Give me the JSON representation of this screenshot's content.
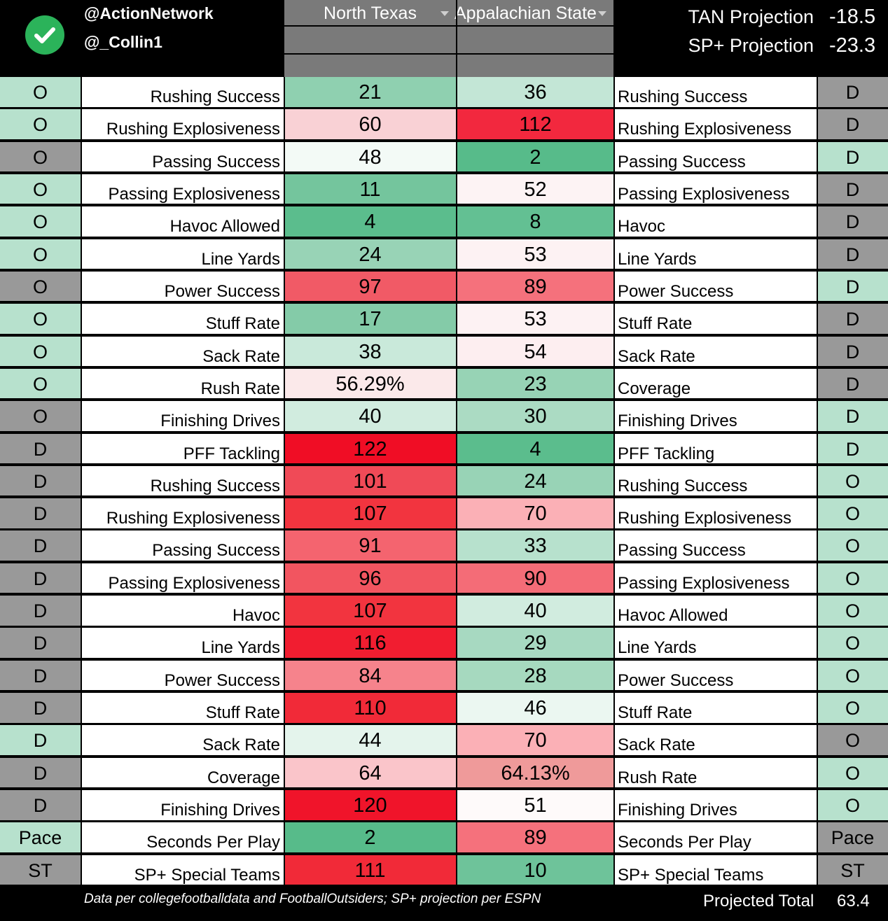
{
  "header": {
    "handle1": "@ActionNetwork",
    "handle2": "@_Collin1",
    "team_left": "North Texas",
    "team_right": "Appalachian State",
    "proj1_label": "TAN Projection",
    "proj1_value": "-18.5",
    "proj2_label": "SP+ Projection",
    "proj2_value": "-23.3"
  },
  "colors": {
    "green_strong": "#57bb8a",
    "red_strong": "#e8002c",
    "unit_green": "#b7e1cd",
    "unit_gray": "#999999"
  },
  "rows": [
    {
      "ul": "O",
      "ulc": "g",
      "ll": "Rushing Success",
      "vl": "21",
      "cl": "#8fd0b0",
      "vr": "36",
      "cr": "#c3e6d6",
      "lr": "Rushing Success",
      "ur": "D",
      "urc": "x"
    },
    {
      "ul": "O",
      "ulc": "g",
      "ll": "Rushing Explosiveness",
      "vl": "60",
      "cl": "#f9d1d5",
      "vr": "112",
      "cr": "#f2283e",
      "lr": "Rushing Explosiveness",
      "ur": "D",
      "urc": "x"
    },
    {
      "ul": "O",
      "ulc": "x",
      "ll": "Passing Success",
      "vl": "48",
      "cl": "#f3faf6",
      "vr": "2",
      "cr": "#57bb8a",
      "lr": "Passing Success",
      "ur": "D",
      "urc": "g"
    },
    {
      "ul": "O",
      "ulc": "g",
      "ll": "Passing Explosiveness",
      "vl": "11",
      "cl": "#74c59d",
      "vr": "52",
      "cr": "#fdf3f4",
      "lr": "Passing Explosiveness",
      "ur": "D",
      "urc": "x"
    },
    {
      "ul": "O",
      "ulc": "g",
      "ll": "Havoc Allowed",
      "vl": "4",
      "cl": "#5bbd8d",
      "vr": "8",
      "cr": "#63c093",
      "lr": "Havoc",
      "ur": "D",
      "urc": "x"
    },
    {
      "ul": "O",
      "ulc": "g",
      "ll": "Line Yards",
      "vl": "24",
      "cl": "#98d3b6",
      "vr": "53",
      "cr": "#fdf2f3",
      "lr": "Line Yards",
      "ur": "D",
      "urc": "x"
    },
    {
      "ul": "O",
      "ulc": "x",
      "ll": "Power Success",
      "vl": "97",
      "cl": "#f15a66",
      "vr": "89",
      "cr": "#f5717c",
      "lr": "Power Success",
      "ur": "D",
      "urc": "g"
    },
    {
      "ul": "O",
      "ulc": "g",
      "ll": "Stuff Rate",
      "vl": "17",
      "cl": "#84cba8",
      "vr": "53",
      "cr": "#fdf2f3",
      "lr": "Stuff Rate",
      "ur": "D",
      "urc": "x"
    },
    {
      "ul": "O",
      "ulc": "g",
      "ll": "Sack Rate",
      "vl": "38",
      "cl": "#c9e9da",
      "vr": "54",
      "cr": "#fdeef0",
      "lr": "Sack Rate",
      "ur": "D",
      "urc": "x"
    },
    {
      "ul": "O",
      "ulc": "g",
      "ll": "Rush Rate",
      "vl": "56.29%",
      "cl": "#fbe9ea",
      "vr": "23",
      "cr": "#97d3b5",
      "lr": "Coverage",
      "ur": "D",
      "urc": "x"
    },
    {
      "ul": "O",
      "ulc": "x",
      "ll": "Finishing Drives",
      "vl": "40",
      "cl": "#d1ecdf",
      "vr": "30",
      "cr": "#abdbc3",
      "lr": "Finishing Drives",
      "ur": "D",
      "urc": "g"
    },
    {
      "ul": "D",
      "ulc": "x",
      "ll": "PFF Tackling",
      "vl": "122",
      "cl": "#f00d25",
      "vr": "4",
      "cr": "#5bbd8d",
      "lr": "PFF Tackling",
      "ur": "D",
      "urc": "g"
    },
    {
      "ul": "D",
      "ulc": "x",
      "ll": "Rushing Success",
      "vl": "101",
      "cl": "#f04a57",
      "vr": "24",
      "cr": "#98d3b6",
      "lr": "Rushing Success",
      "ur": "O",
      "urc": "g"
    },
    {
      "ul": "D",
      "ulc": "x",
      "ll": "Rushing Explosiveness",
      "vl": "107",
      "cl": "#f2343f",
      "vr": "70",
      "cr": "#fbb0b6",
      "lr": "Rushing Explosiveness",
      "ur": "O",
      "urc": "g"
    },
    {
      "ul": "D",
      "ulc": "x",
      "ll": "Passing Success",
      "vl": "91",
      "cl": "#f4646f",
      "vr": "33",
      "cr": "#b7e1cd",
      "lr": "Passing Success",
      "ur": "O",
      "urc": "g"
    },
    {
      "ul": "D",
      "ulc": "x",
      "ll": "Passing Explosiveness",
      "vl": "96",
      "cl": "#f25560",
      "vr": "90",
      "cr": "#f46c77",
      "lr": "Passing Explosiveness",
      "ur": "O",
      "urc": "g"
    },
    {
      "ul": "D",
      "ulc": "x",
      "ll": "Havoc",
      "vl": "107",
      "cl": "#f2343f",
      "vr": "40",
      "cr": "#d1ecdf",
      "lr": "Havoc Allowed",
      "ur": "O",
      "urc": "g"
    },
    {
      "ul": "D",
      "ulc": "x",
      "ll": "Line Yards",
      "vl": "116",
      "cl": "#f11d30",
      "vr": "29",
      "cr": "#a7d9c1",
      "lr": "Line Yards",
      "ur": "O",
      "urc": "g"
    },
    {
      "ul": "D",
      "ulc": "x",
      "ll": "Power Success",
      "vl": "84",
      "cl": "#f6838c",
      "vr": "28",
      "cr": "#a6d9bf",
      "lr": "Power Success",
      "ur": "O",
      "urc": "g"
    },
    {
      "ul": "D",
      "ulc": "x",
      "ll": "Stuff Rate",
      "vl": "110",
      "cl": "#f12a38",
      "vr": "46",
      "cr": "#ebf7f1",
      "lr": "Stuff Rate",
      "ur": "O",
      "urc": "g"
    },
    {
      "ul": "D",
      "ulc": "g",
      "ll": "Sack Rate",
      "vl": "44",
      "cl": "#e4f4ec",
      "vr": "70",
      "cr": "#fbb0b6",
      "lr": "Sack Rate",
      "ur": "O",
      "urc": "x"
    },
    {
      "ul": "D",
      "ulc": "x",
      "ll": "Coverage",
      "vl": "64",
      "cl": "#fac5ca",
      "vr": "64.13%",
      "cr": "#ef9a9a",
      "lr": "Rush Rate",
      "ur": "O",
      "urc": "g"
    },
    {
      "ul": "D",
      "ulc": "x",
      "ll": "Finishing Drives",
      "vl": "120",
      "cl": "#f0142a",
      "vr": "51",
      "cr": "#fefafa",
      "lr": "Finishing Drives",
      "ur": "O",
      "urc": "g"
    },
    {
      "ul": "Pace",
      "ulc": "g",
      "ll": "Seconds Per Play",
      "vl": "2",
      "cl": "#57bb8a",
      "vr": "89",
      "cr": "#f5717c",
      "lr": "Seconds Per Play",
      "ur": "Pace",
      "urc": "x"
    },
    {
      "ul": "ST",
      "ulc": "x",
      "ll": "SP+ Special Teams",
      "vl": "111",
      "cl": "#f12a38",
      "vr": "10",
      "cr": "#6ec39a",
      "lr": "SP+ Special Teams",
      "ur": "ST",
      "urc": "x"
    }
  ],
  "footer": {
    "note": "Data per collegefootballdata and FootballOutsiders; SP+ projection per ESPN",
    "total_label": "Projected Total",
    "total_value": "63.4"
  }
}
